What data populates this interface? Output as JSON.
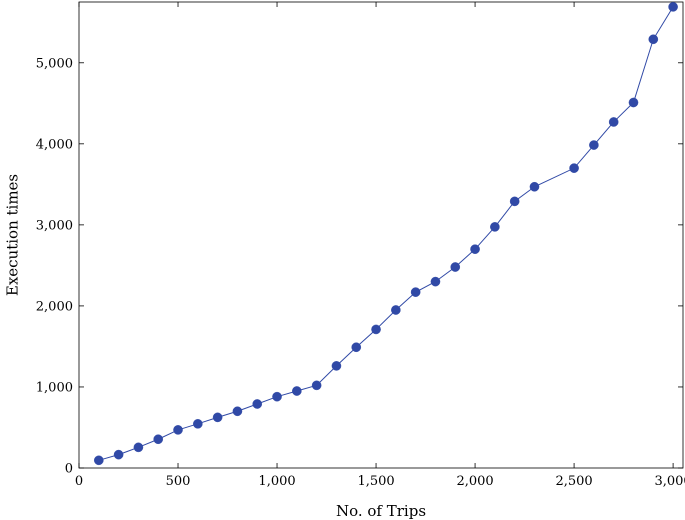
{
  "chart_data": {
    "type": "line",
    "title": "",
    "xlabel": "No. of Trips",
    "ylabel": "Execution times",
    "xlim": [
      0,
      3050
    ],
    "ylim": [
      0,
      5750
    ],
    "xticks": [
      0,
      500,
      1000,
      1500,
      2000,
      2500,
      3000
    ],
    "xtick_labels": [
      "0",
      "500",
      "1,000",
      "1,500",
      "2,000",
      "2,500",
      "3,000"
    ],
    "yticks": [
      0,
      1000,
      2000,
      3000,
      4000,
      5000
    ],
    "ytick_labels": [
      "0",
      "1,000",
      "2,000",
      "3,000",
      "4,000",
      "5,000"
    ],
    "grid": false,
    "legend": false,
    "series": [
      {
        "color": "#3049a6",
        "marker": "circle",
        "x": [
          100,
          200,
          300,
          400,
          500,
          600,
          700,
          800,
          900,
          1000,
          1100,
          1200,
          1300,
          1400,
          1500,
          1600,
          1700,
          1800,
          1900,
          2000,
          2100,
          2200,
          2300,
          2500,
          2600,
          2700,
          2800,
          2900,
          3000
        ],
        "y": [
          95,
          165,
          255,
          355,
          470,
          545,
          625,
          700,
          790,
          880,
          950,
          1020,
          1260,
          1490,
          1710,
          1950,
          2170,
          2300,
          2480,
          2700,
          2975,
          3290,
          3470,
          3700,
          3985,
          4270,
          4510,
          5290,
          5690
        ]
      }
    ]
  }
}
